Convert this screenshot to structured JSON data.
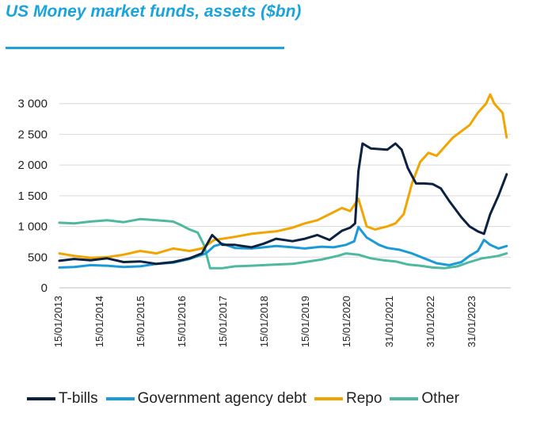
{
  "title": "US Money market funds, assets ($bn)",
  "chart_data": {
    "type": "line",
    "title": "US Money market funds, assets ($bn)",
    "ylim": [
      0,
      3500
    ],
    "yticks": [
      0,
      500,
      1000,
      1500,
      2000,
      2500,
      3000
    ],
    "ytick_labels": [
      "0",
      "500",
      "1 000",
      "1 500",
      "2 000",
      "2 500",
      "3 000"
    ],
    "xlim": [
      2013.04,
      2024.0
    ],
    "xticks": [
      2013.04,
      2014.04,
      2015.04,
      2016.04,
      2017.04,
      2018.04,
      2019.04,
      2020.04,
      2021.08,
      2022.08,
      2023.08
    ],
    "xtick_labels": [
      "15/01/2013",
      "15/01/2014",
      "15/01/2015",
      "15/01/2016",
      "15/01/2017",
      "15/01/2018",
      "15/01/2019",
      "15/01/2020",
      "31/01/2021",
      "31/01/2022",
      "31/01/2023"
    ],
    "legend_position": "bottom",
    "grid": "horizontal",
    "series": [
      {
        "name": "T-bills",
        "color": "#0d2240",
        "x": [
          2013.04,
          2013.4,
          2013.8,
          2014.2,
          2014.6,
          2015.0,
          2015.4,
          2015.8,
          2016.2,
          2016.5,
          2016.75,
          2017.0,
          2017.3,
          2017.7,
          2018.0,
          2018.3,
          2018.7,
          2019.0,
          2019.3,
          2019.6,
          2019.9,
          2020.1,
          2020.22,
          2020.3,
          2020.4,
          2020.6,
          2020.8,
          2021.0,
          2021.2,
          2021.35,
          2021.5,
          2021.7,
          2021.9,
          2022.1,
          2022.3,
          2022.5,
          2022.8,
          2023.0,
          2023.2,
          2023.35,
          2023.5,
          2023.7,
          2023.9
        ],
        "values": [
          440,
          470,
          450,
          480,
          420,
          430,
          390,
          420,
          480,
          560,
          860,
          700,
          700,
          660,
          720,
          800,
          760,
          800,
          860,
          780,
          930,
          980,
          1050,
          1900,
          2350,
          2270,
          2260,
          2250,
          2350,
          2250,
          1950,
          1700,
          1700,
          1690,
          1620,
          1420,
          1150,
          1000,
          920,
          880,
          1200,
          1500,
          1850
        ]
      },
      {
        "name": "Government agency debt",
        "color": "#1a9ad6",
        "x": [
          2013.04,
          2013.4,
          2013.8,
          2014.2,
          2014.6,
          2015.0,
          2015.4,
          2015.8,
          2016.2,
          2016.6,
          2016.8,
          2017.0,
          2017.3,
          2017.7,
          2018.0,
          2018.3,
          2018.7,
          2019.0,
          2019.4,
          2019.7,
          2020.0,
          2020.2,
          2020.3,
          2020.5,
          2020.8,
          2021.0,
          2021.3,
          2021.6,
          2021.9,
          2022.2,
          2022.5,
          2022.8,
          2023.0,
          2023.2,
          2023.35,
          2023.5,
          2023.7,
          2023.9
        ],
        "values": [
          330,
          340,
          370,
          360,
          340,
          350,
          390,
          410,
          470,
          560,
          680,
          720,
          650,
          640,
          660,
          680,
          660,
          640,
          670,
          660,
          700,
          760,
          990,
          820,
          700,
          650,
          620,
          560,
          480,
          400,
          370,
          420,
          520,
          600,
          780,
          700,
          640,
          680
        ]
      },
      {
        "name": "Repo",
        "color": "#f0a500",
        "x": [
          2013.04,
          2013.4,
          2013.8,
          2014.2,
          2014.6,
          2015.0,
          2015.4,
          2015.8,
          2016.2,
          2016.5,
          2016.8,
          2017.0,
          2017.3,
          2017.7,
          2018.0,
          2018.3,
          2018.7,
          2019.0,
          2019.3,
          2019.6,
          2019.9,
          2020.1,
          2020.2,
          2020.3,
          2020.5,
          2020.7,
          2021.0,
          2021.2,
          2021.4,
          2021.6,
          2021.8,
          2022.0,
          2022.2,
          2022.4,
          2022.6,
          2022.8,
          2023.0,
          2023.2,
          2023.4,
          2023.5,
          2023.6,
          2023.8,
          2023.9
        ],
        "values": [
          560,
          520,
          490,
          500,
          540,
          600,
          560,
          640,
          600,
          640,
          780,
          800,
          830,
          880,
          900,
          920,
          980,
          1050,
          1100,
          1200,
          1300,
          1250,
          1350,
          1450,
          1000,
          950,
          1000,
          1050,
          1200,
          1700,
          2050,
          2200,
          2150,
          2300,
          2450,
          2550,
          2650,
          2850,
          3000,
          3150,
          3000,
          2850,
          2450
        ]
      },
      {
        "name": "Other",
        "color": "#4fb8a0",
        "x": [
          2013.04,
          2013.4,
          2013.8,
          2014.2,
          2014.6,
          2015.0,
          2015.4,
          2015.8,
          2016.0,
          2016.2,
          2016.4,
          2016.55,
          2016.7,
          2017.0,
          2017.3,
          2017.7,
          2018.0,
          2018.3,
          2018.7,
          2019.0,
          2019.4,
          2019.8,
          2020.0,
          2020.3,
          2020.6,
          2020.9,
          2021.2,
          2021.5,
          2021.8,
          2022.1,
          2022.4,
          2022.7,
          2023.0,
          2023.3,
          2023.5,
          2023.7,
          2023.9
        ],
        "values": [
          1060,
          1050,
          1080,
          1100,
          1070,
          1120,
          1100,
          1080,
          1020,
          950,
          900,
          700,
          320,
          320,
          350,
          360,
          370,
          380,
          390,
          420,
          460,
          520,
          560,
          540,
          480,
          450,
          430,
          380,
          360,
          330,
          320,
          350,
          420,
          480,
          500,
          520,
          560
        ]
      }
    ]
  }
}
